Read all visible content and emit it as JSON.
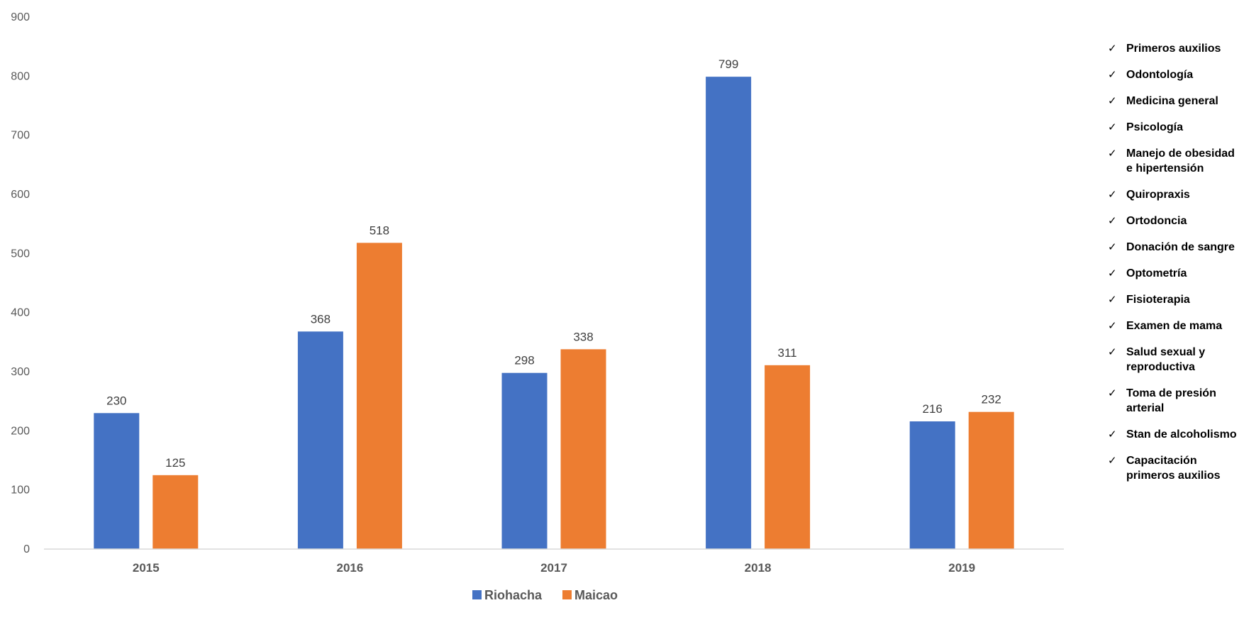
{
  "chart_data": {
    "type": "bar",
    "title": "",
    "xlabel": "",
    "ylabel": "",
    "categories": [
      "2015",
      "2016",
      "2017",
      "2018",
      "2019"
    ],
    "series": [
      {
        "name": "Riohacha",
        "values": [
          230,
          368,
          298,
          799,
          216
        ],
        "color": "#4472C4"
      },
      {
        "name": "Maicao",
        "values": [
          125,
          518,
          338,
          311,
          232
        ],
        "color": "#ED7D31"
      }
    ],
    "ylim": [
      0,
      900
    ],
    "yticks": [
      0,
      100,
      200,
      300,
      400,
      500,
      600,
      700,
      800,
      900
    ],
    "grid": false,
    "data_labels": true,
    "legend_position": "bottom-center"
  },
  "services": {
    "check_glyph": "✓",
    "items": [
      "Primeros auxilios",
      "Odontología",
      "Medicina general",
      "Psicología",
      "Manejo de obesidad e hipertensión",
      "Quiropraxis",
      "Ortodoncia",
      "Donación de sangre",
      "Optometría",
      "Fisioterapia",
      "Examen de mama",
      "Salud sexual y reproductiva",
      "Toma de presión arterial",
      "Stan de alcoholismo",
      "Capacitación primeros auxilios"
    ]
  }
}
